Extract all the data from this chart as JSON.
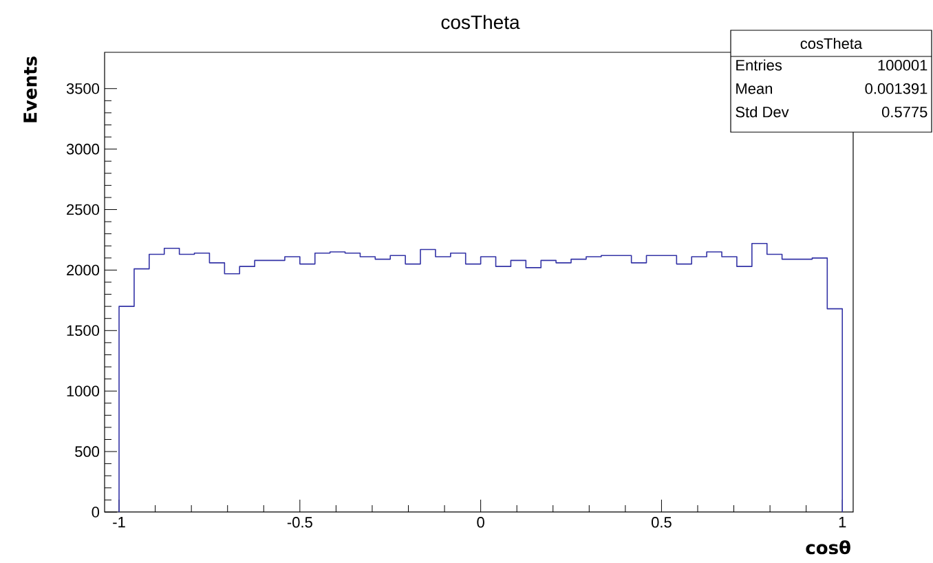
{
  "chart_data": {
    "type": "histogram",
    "title": "cosTheta",
    "xlabel": "cosθ",
    "ylabel": "Events",
    "color": "#3333a6",
    "bins": [
      -1,
      -0.9583,
      -0.9167,
      -0.875,
      -0.8333,
      -0.7917,
      -0.75,
      -0.7083,
      -0.6667,
      -0.625,
      -0.5833,
      -0.5417,
      -0.5,
      -0.4583,
      -0.4167,
      -0.375,
      -0.3333,
      -0.2917,
      -0.25,
      -0.2083,
      -0.1667,
      -0.125,
      -0.0833,
      -0.0417,
      0,
      0.0417,
      0.0833,
      0.125,
      0.1667,
      0.2083,
      0.25,
      0.2917,
      0.3333,
      0.375,
      0.4167,
      0.4583,
      0.5,
      0.5417,
      0.5833,
      0.625,
      0.6667,
      0.7083,
      0.75,
      0.7917,
      0.8333,
      0.875,
      0.9167,
      0.9583,
      1
    ],
    "values": [
      1700,
      2010,
      2130,
      2180,
      2130,
      2140,
      2060,
      1970,
      2030,
      2080,
      2080,
      2110,
      2050,
      2140,
      2150,
      2140,
      2110,
      2090,
      2120,
      2050,
      2170,
      2110,
      2140,
      2050,
      2110,
      2030,
      2080,
      2020,
      2080,
      2060,
      2090,
      2110,
      2120,
      2120,
      2060,
      2120,
      2120,
      2050,
      2110,
      2150,
      2110,
      2030,
      2220,
      2130,
      2090,
      2090,
      2100,
      1680
    ],
    "xlim": [
      -1.04,
      1.03
    ],
    "xticks": [
      -1,
      -0.5,
      0,
      0.5,
      1
    ],
    "ylim": [
      0,
      3800
    ],
    "yticks": [
      0,
      500,
      1000,
      1500,
      2000,
      2500,
      3000,
      3500
    ],
    "annotations": [
      "cosTheta",
      "Entries",
      "100001",
      "Mean",
      "0.001391",
      "Std Dev",
      "0.5775"
    ]
  }
}
